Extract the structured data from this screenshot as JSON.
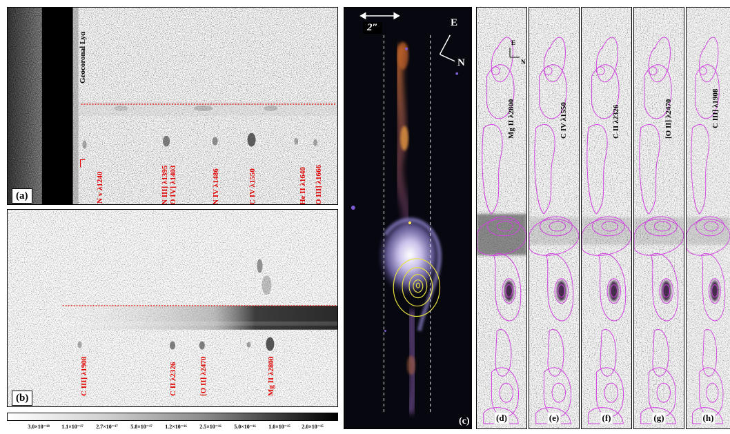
{
  "panel_a": {
    "label": "(a)",
    "geocoronal_label": "Geocoronal Lyα",
    "lines": [
      "N v λ1240",
      "N III] λ1395",
      "O IV] λ1403",
      "N IV λ1486",
      "C IV λ1550",
      "He II λ1640",
      "O III] λ1666"
    ]
  },
  "panel_b": {
    "label": "(b)",
    "lines": [
      "C III] λ1908",
      "C II λ2326",
      "[O II] λ2470",
      "Mg II λ2800"
    ]
  },
  "colorbar": {
    "ticks": [
      "3.0×10⁻¹⁸",
      "1.1×10⁻¹⁷",
      "2.7×10⁻¹⁷",
      "5.8×10⁻¹⁷",
      "1.2×10⁻¹⁶",
      "2.5×10⁻¹⁶",
      "5.0×10⁻¹⁶",
      "1.0×10⁻¹⁵",
      "2.0×10⁻¹⁵"
    ]
  },
  "panel_c": {
    "label": "(c)",
    "scale": "2″",
    "compass_e": "E",
    "compass_n": "N"
  },
  "strips": [
    {
      "label": "(d)",
      "line": "Mg II λ2800",
      "compass_e": "E",
      "compass_n": "N"
    },
    {
      "label": "(e)",
      "line": "C IV λ1550"
    },
    {
      "label": "(f)",
      "line": "C II λ2326"
    },
    {
      "label": "(g)",
      "line": "[O II] λ2470"
    },
    {
      "label": "(h)",
      "line": "C III] λ1908"
    }
  ],
  "colors": {
    "line_label": "#e00000",
    "contour": "#d040e0",
    "yellow_contour": "#e8e040",
    "dashed_line": "#ffffff"
  }
}
